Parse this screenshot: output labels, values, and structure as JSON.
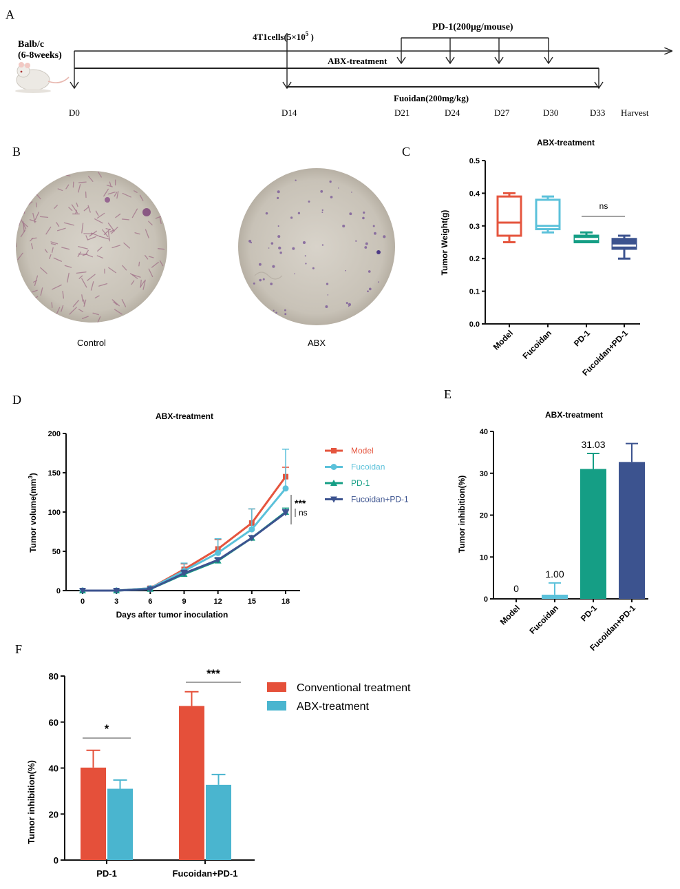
{
  "panel_letters": {
    "A": "A",
    "B": "B",
    "C": "C",
    "D": "D",
    "E": "E",
    "F": "F"
  },
  "panelA": {
    "mouse_label_1": "Balb/c",
    "mouse_label_2": "(6-8weeks)",
    "cells_label": "4T1cells(5×10",
    "cells_sup": "5",
    "cells_close": " )",
    "pd1_label": "PD-1(200μg/mouse)",
    "abx_label": "ABX-treatment",
    "fucoidan_label": "Fuoidan(200mg/kg)",
    "days": [
      "D0",
      "D14",
      "D21",
      "D24",
      "D27",
      "D30",
      "D33"
    ],
    "harvest": "Harvest"
  },
  "panelB": {
    "labels": [
      "Control",
      "ABX"
    ],
    "colors": {
      "dish": "#c9c3b8",
      "rod": "#a07088",
      "dot": "#7a5a98"
    }
  },
  "chart_data": [
    {
      "id": "C",
      "type": "box",
      "title": "ABX-treatment",
      "ylabel": "Tumor Weight(g)",
      "ylim": [
        0,
        0.5
      ],
      "yticks": [
        "0.0",
        "0.1",
        "0.2",
        "0.3",
        "0.4",
        "0.5"
      ],
      "categories": [
        "Model",
        "Fucoidan",
        "PD-1",
        "Fucoidan+PD-1"
      ],
      "boxes": [
        {
          "min": 0.25,
          "q1": 0.27,
          "median": 0.31,
          "q3": 0.39,
          "max": 0.4
        },
        {
          "min": 0.28,
          "q1": 0.29,
          "median": 0.3,
          "q3": 0.38,
          "max": 0.39
        },
        {
          "min": 0.25,
          "q1": 0.25,
          "median": 0.26,
          "q3": 0.27,
          "max": 0.28
        },
        {
          "min": 0.2,
          "q1": 0.23,
          "median": 0.24,
          "q3": 0.26,
          "max": 0.27
        }
      ],
      "colors": [
        "#e5553e",
        "#5bc1da",
        "#159e85",
        "#3c538f"
      ],
      "annotation": "ns"
    },
    {
      "id": "D",
      "type": "line",
      "title": "ABX-treatment",
      "xlabel": "Days after tumor inoculation",
      "ylabel_main": "Tumor volume(mm",
      "ylabel_sup": "3",
      "ylabel_close": ")",
      "x": [
        0,
        3,
        6,
        9,
        12,
        15,
        18
      ],
      "ylim": [
        0,
        200
      ],
      "yticks": [
        "0",
        "50",
        "100",
        "150",
        "200"
      ],
      "xticks": [
        "0",
        "3",
        "6",
        "9",
        "12",
        "15",
        "18"
      ],
      "series": [
        {
          "name": "Model",
          "values": [
            0,
            0,
            3,
            27,
            53,
            86,
            145
          ],
          "err": [
            0,
            0,
            1,
            7,
            12,
            18,
            12
          ],
          "color": "#e5553e",
          "marker": "square"
        },
        {
          "name": "Fucoidan",
          "values": [
            0,
            0,
            3,
            25,
            48,
            78,
            130
          ],
          "err": [
            0,
            0,
            1,
            10,
            18,
            26,
            50
          ],
          "color": "#5bc1da",
          "marker": "circle"
        },
        {
          "name": "PD-1",
          "values": [
            0,
            0,
            2,
            21,
            38,
            67,
            100
          ],
          "err": [
            0,
            0,
            1,
            4,
            3,
            3,
            5
          ],
          "color": "#159e85",
          "marker": "triangle"
        },
        {
          "name": "Fucoidan+PD-1",
          "values": [
            0,
            0,
            2,
            22,
            39,
            67,
            99
          ],
          "err": [
            0,
            0,
            1,
            4,
            3,
            3,
            4
          ],
          "color": "#3c538f",
          "marker": "triangle-down"
        }
      ],
      "annotation_1": "***",
      "annotation_2": "ns"
    },
    {
      "id": "E",
      "type": "bar",
      "title": "ABX-treatment",
      "ylabel": "Tumor inhibition(%)",
      "ylim": [
        0,
        40
      ],
      "yticks": [
        "0",
        "10",
        "20",
        "30",
        "40"
      ],
      "categories": [
        "Model",
        "Fucoidan",
        "PD-1",
        "Fucoidan+PD-1"
      ],
      "values": [
        0,
        1.0,
        31.03,
        32.7
      ],
      "err": [
        0,
        2.8,
        3.7,
        4.4
      ],
      "data_labels": [
        "0",
        "1.00",
        "31.03",
        ""
      ],
      "colors": [
        "#e5553e",
        "#5bc1da",
        "#159e85",
        "#3c538f"
      ]
    },
    {
      "id": "F",
      "type": "bar",
      "ylabel": "Tumor inhibition(%)",
      "ylim": [
        0,
        80
      ],
      "yticks": [
        "0",
        "20",
        "40",
        "60",
        "80"
      ],
      "categories": [
        "PD-1",
        "Fucoidan+PD-1"
      ],
      "series": [
        {
          "name": "Conventional treatment",
          "values": [
            40.2,
            67.0
          ],
          "err": [
            7.5,
            6.2
          ],
          "color": "#e5503a"
        },
        {
          "name": "ABX-treatment",
          "values": [
            31.0,
            32.7
          ],
          "err": [
            3.8,
            4.5
          ],
          "color": "#4ab5cf"
        }
      ],
      "annotations": [
        "*",
        "***"
      ]
    }
  ]
}
